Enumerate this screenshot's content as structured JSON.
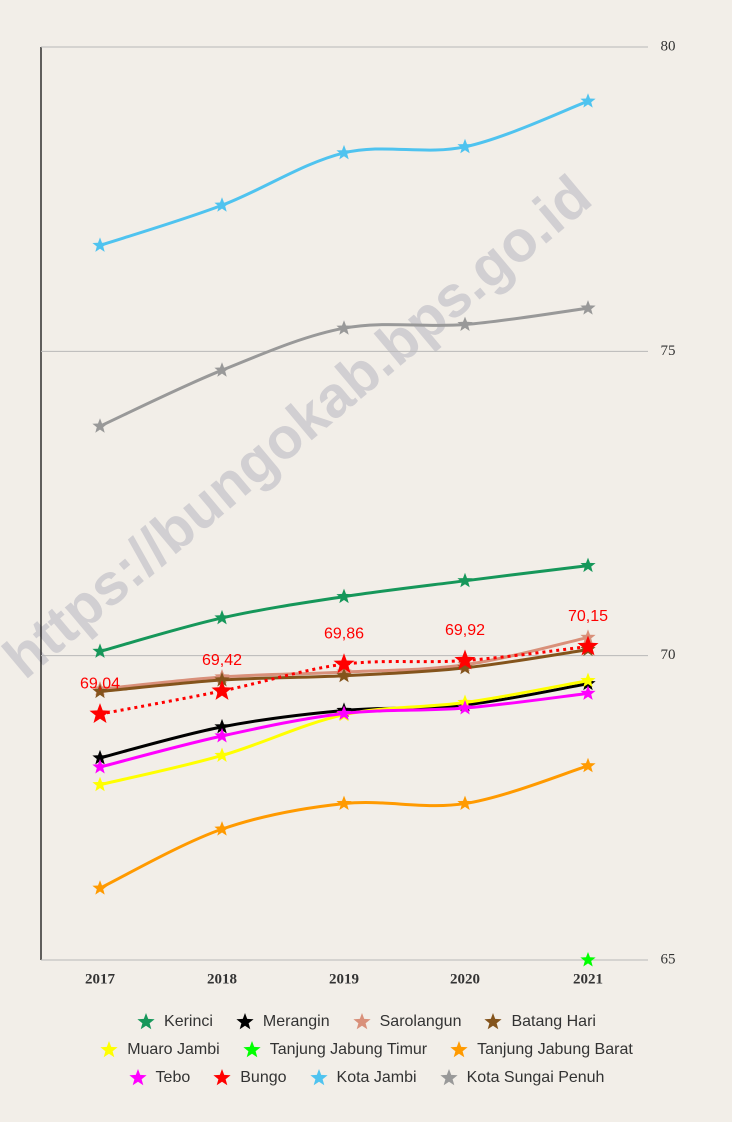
{
  "chart_data": {
    "type": "line",
    "watermark": "https://bungokab.bps.go.id",
    "categories": [
      "2017",
      "2018",
      "2019",
      "2020",
      "2021"
    ],
    "ylim": [
      65,
      80
    ],
    "yticks": [
      65,
      70,
      75,
      80
    ],
    "grid": true,
    "series": [
      {
        "name": "Kerinci",
        "color": "#16975a",
        "values": [
          70.07,
          70.62,
          70.97,
          71.23,
          71.48
        ]
      },
      {
        "name": "Merangin",
        "color": "#000000",
        "values": [
          68.32,
          68.83,
          69.1,
          69.19,
          69.54
        ]
      },
      {
        "name": "Sarolangun",
        "color": "#d9907a",
        "values": [
          69.45,
          69.65,
          69.73,
          69.85,
          70.3
        ]
      },
      {
        "name": "Batang Hari",
        "color": "#84541c",
        "values": [
          69.41,
          69.6,
          69.67,
          69.8,
          70.1
        ]
      },
      {
        "name": "Muaro Jambi",
        "color": "#ffff00",
        "values": [
          67.88,
          68.36,
          69.03,
          69.23,
          69.59
        ]
      },
      {
        "name": "Tanjung Jabung Timur",
        "color": "#00ff00",
        "values": [
          null,
          null,
          null,
          null,
          65
        ]
      },
      {
        "name": "Tanjung Jabung Barat",
        "color": "#ff9a00",
        "values": [
          66.18,
          67.15,
          67.57,
          67.57,
          68.19
        ]
      },
      {
        "name": "Tebo",
        "color": "#ff00ff",
        "values": [
          68.17,
          68.68,
          69.05,
          69.14,
          69.38
        ]
      },
      {
        "name": "Bungo",
        "color": "#ff0000",
        "dotted": true,
        "values": [
          69.04,
          69.42,
          69.86,
          69.92,
          70.15
        ],
        "value_labels": [
          "69,04",
          "69,42",
          "69,86",
          "69,92",
          "70,15"
        ]
      },
      {
        "name": "Kota Jambi",
        "color": "#4fc3ef",
        "values": [
          76.74,
          77.4,
          78.26,
          78.36,
          79.11
        ]
      },
      {
        "name": "Kota Sungai Penuh",
        "color": "#999999",
        "values": [
          73.77,
          74.69,
          75.38,
          75.44,
          75.71
        ]
      }
    ]
  }
}
